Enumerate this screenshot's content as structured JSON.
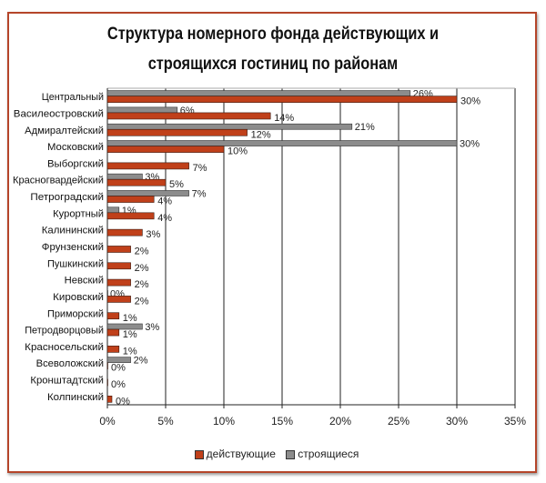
{
  "chart_data": {
    "type": "bar",
    "orientation": "horizontal",
    "title": "Структура номерного фонда действующих и строящихся гостиниц по районам",
    "title_lines": [
      "Структура номерного фонда действующих и",
      "строящихся гостиниц по районам"
    ],
    "categories": [
      "Центральный",
      "Василеостровский",
      "Адмиралтейский",
      "Московский",
      "Выборгский",
      "Красногвардейский",
      "Петроградский",
      "Курортный",
      "Калининский",
      "Фрунзенский",
      "Пушкинский",
      "Невский",
      "Кировский",
      "Приморский",
      "Петродворцовый",
      "Красносельский",
      "Всеволожский",
      "Кронштадтский",
      "Колпинский"
    ],
    "series": [
      {
        "name": "действующие",
        "color": "#c0401a",
        "values": [
          30,
          14,
          12,
          10,
          7,
          5,
          4,
          4,
          3,
          2,
          2,
          2,
          2,
          1,
          1,
          1,
          0,
          0,
          0
        ]
      },
      {
        "name": "строящиеся",
        "color": "#8c8c8c",
        "values": [
          26,
          6,
          21,
          30,
          null,
          3,
          7,
          1,
          null,
          null,
          null,
          null,
          0,
          null,
          3,
          null,
          2,
          null,
          null
        ]
      }
    ],
    "x_ticks": [
      "0%",
      "5%",
      "10%",
      "15%",
      "20%",
      "25%",
      "30%",
      "35%"
    ],
    "xlim": [
      0,
      35
    ],
    "grid": true,
    "legend_position": "bottom"
  }
}
